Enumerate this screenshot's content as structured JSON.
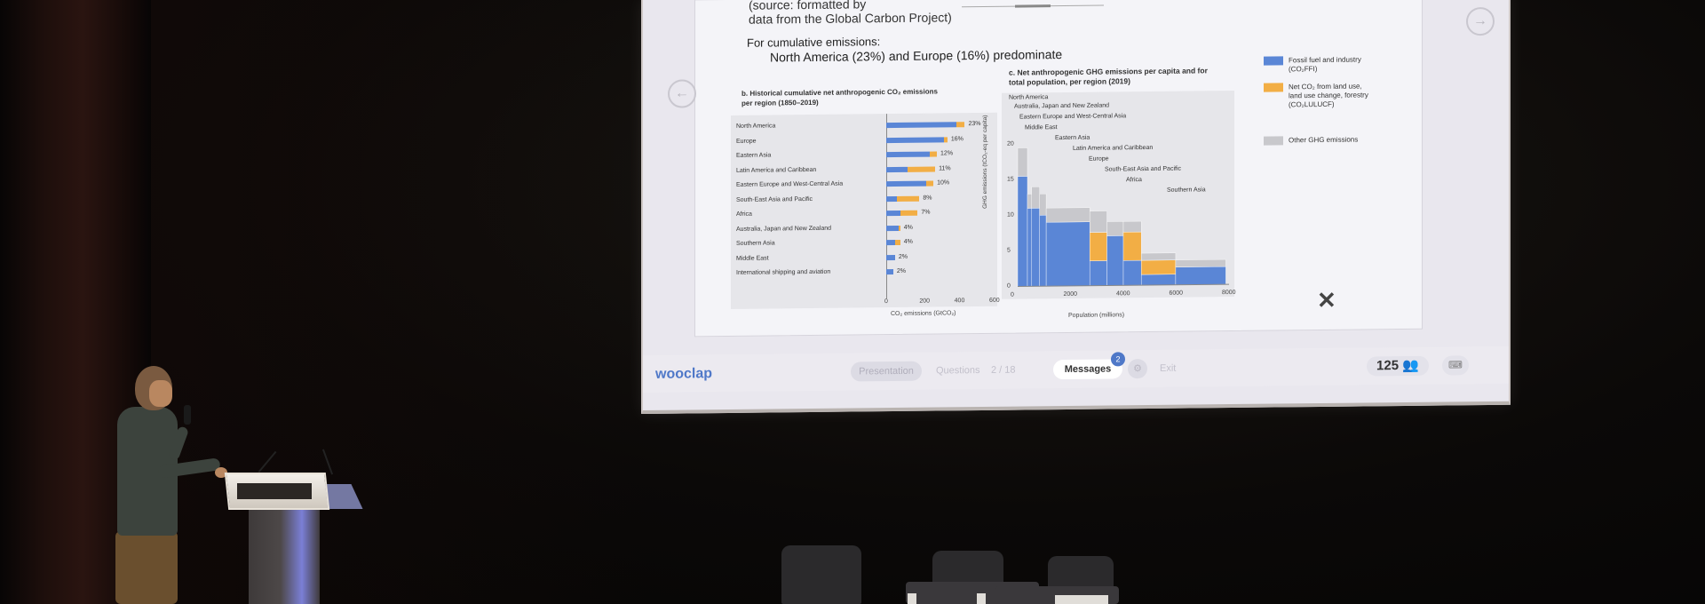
{
  "slide": {
    "source_line1": "(source: formatted by ",
    "source_line2": "data from the Global Carbon Project)",
    "cumulative_heading": "For cumulative emissions:",
    "cumulative_sub": "North America (23%) and Europe (16%) predominate",
    "nav_prev": "←",
    "nav_next": "→",
    "chart_b": {
      "title": "b. Historical cumulative net anthropogenic CO₂ emissions per region (1850–2019)",
      "xlabel": "CO₂ emissions (GtCO₂)",
      "ticks": [
        "0",
        "200",
        "400",
        "600"
      ]
    },
    "chart_c": {
      "title": "c. Net anthropogenic GHG emissions per capita and for total population, per region (2019)",
      "ylabel": "GHG emissions (tCO₂-eq per capita)",
      "xlabel": "Population (millions)",
      "yticks": [
        "20",
        "15",
        "10",
        "5",
        "0"
      ],
      "xticks": [
        "0",
        "2000",
        "4000",
        "6000",
        "8000"
      ],
      "regions": [
        "North America",
        "Australia, Japan and New Zealand",
        "Eastern Europe and West-Central Asia",
        "Middle East",
        "Eastern Asia",
        "Latin America and Caribbean",
        "Europe",
        "South-East Asia and Pacific",
        "Africa",
        "Southern Asia"
      ]
    },
    "legend": [
      {
        "label": "Fossil fuel and industry (CO₂FFI)",
        "color": "#5a86d6"
      },
      {
        "label": "Net CO₂ from land use, land use change, forestry (CO₂LULUCF)",
        "color": "#f2ae45"
      },
      {
        "label": "Other GHG emissions",
        "color": "#c8c8cc"
      }
    ]
  },
  "wooclap": {
    "brand": "wooclap",
    "presentation_label": "Presentation",
    "questions_label": "Questions",
    "question_counter": "2 / 18",
    "messages_label": "Messages",
    "messages_badge": "2",
    "exit_label": "Exit",
    "participant_count": "125"
  },
  "chart_data": [
    {
      "type": "bar",
      "title": "b. Historical cumulative net anthropogenic CO₂ emissions per region (1850–2019)",
      "xlabel": "CO₂ emissions (GtCO₂)",
      "ylabel": "",
      "xlim": [
        0,
        600
      ],
      "categories": [
        "North America",
        "Europe",
        "Eastern Asia",
        "Latin America and Caribbean",
        "Eastern Europe and West-Central Asia",
        "South-East Asia and Pacific",
        "Africa",
        "Australia, Japan and New Zealand",
        "Southern Asia",
        "Middle East",
        "International shipping and aviation"
      ],
      "series": [
        {
          "name": "Fossil fuel and industry (CO₂FFI)",
          "values": [
            400,
            330,
            250,
            120,
            230,
            60,
            80,
            70,
            50,
            50,
            40
          ]
        },
        {
          "name": "Net CO₂ from land use, land use change, forestry (CO₂LULUCF)",
          "values": [
            50,
            20,
            40,
            160,
            40,
            130,
            100,
            10,
            30,
            0,
            0
          ]
        }
      ],
      "data_labels": [
        "23%",
        "16%",
        "12%",
        "11%",
        "10%",
        "8%",
        "7%",
        "4%",
        "4%",
        "2%",
        "2%"
      ]
    },
    {
      "type": "bar",
      "title": "c. Net anthropogenic GHG emissions per capita and for total population, per region (2019)",
      "xlabel": "Population (millions)",
      "ylabel": "GHG emissions (tCO₂-eq per capita)",
      "xlim": [
        0,
        8000
      ],
      "ylim": [
        0,
        20
      ],
      "categories": [
        "North America",
        "Australia, Japan and New Zealand",
        "Eastern Europe and West-Central Asia",
        "Middle East",
        "Eastern Asia",
        "Latin America and Caribbean",
        "Europe",
        "South-East Asia and Pacific",
        "Africa",
        "Southern Asia"
      ],
      "series": [
        {
          "name": "Fossil fuel and industry (CO₂FFI)",
          "values": [
            15.5,
            11,
            11,
            10,
            9,
            3.5,
            7,
            3.5,
            1.5,
            2.5
          ]
        },
        {
          "name": "Net CO₂ from land use, land use change, forestry (CO₂LULUCF)",
          "values": [
            0,
            0,
            0,
            0,
            0,
            4,
            0,
            4,
            2,
            0
          ]
        },
        {
          "name": "Other GHG emissions",
          "values": [
            4,
            2,
            3,
            3,
            2,
            3,
            2,
            1.5,
            1,
            1
          ]
        }
      ]
    }
  ]
}
